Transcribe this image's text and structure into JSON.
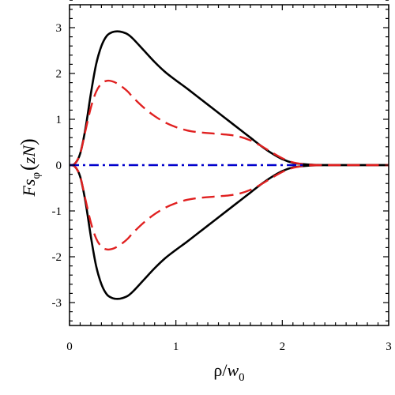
{
  "chart_data": {
    "type": "line",
    "xlabel": "ρ/w0",
    "xlabel_parts": {
      "main": "ρ/",
      "var": "w",
      "sub": "0"
    },
    "ylabel": "Fs_φ(zN)",
    "ylabel_parts": {
      "main": "Fs",
      "sub": "φ",
      "arg_open": "(",
      "arg": "zN",
      "arg_close": ")"
    },
    "xlim": [
      0,
      3
    ],
    "ylim": [
      -3.5,
      3.5
    ],
    "xticks": [
      0,
      1,
      2,
      3
    ],
    "xtick_labels": [
      "0",
      "1",
      "2",
      "3"
    ],
    "yticks": [
      -3,
      -2,
      -1,
      0,
      1,
      2,
      3
    ],
    "ytick_labels": [
      "-3",
      "-2",
      "-1",
      "0",
      "1",
      "2",
      "3"
    ],
    "grid": false,
    "legend": "none",
    "series": [
      {
        "style": "solid",
        "color": "#000000",
        "x": [
          0,
          0.05,
          0.1,
          0.15,
          0.2,
          0.25,
          0.3,
          0.35,
          0.4,
          0.45,
          0.5,
          0.55,
          0.6,
          0.7,
          0.8,
          0.9,
          1.0,
          1.1,
          1.2,
          1.3,
          1.4,
          1.5,
          1.6,
          1.7,
          1.8,
          1.9,
          2.0,
          2.1,
          2.2,
          2.3,
          2.4,
          2.5,
          2.6,
          3.0
        ],
        "y": [
          0,
          0.03,
          0.25,
          0.8,
          1.55,
          2.2,
          2.6,
          2.82,
          2.9,
          2.92,
          2.9,
          2.85,
          2.75,
          2.5,
          2.25,
          2.03,
          1.85,
          1.68,
          1.5,
          1.32,
          1.14,
          0.96,
          0.78,
          0.6,
          0.42,
          0.26,
          0.13,
          0.05,
          0.02,
          0.005,
          0,
          0,
          0,
          0
        ]
      },
      {
        "style": "solid",
        "color": "#000000",
        "x": [
          0,
          0.05,
          0.1,
          0.15,
          0.2,
          0.25,
          0.3,
          0.35,
          0.4,
          0.45,
          0.5,
          0.55,
          0.6,
          0.7,
          0.8,
          0.9,
          1.0,
          1.1,
          1.2,
          1.3,
          1.4,
          1.5,
          1.6,
          1.7,
          1.8,
          1.9,
          2.0,
          2.1,
          2.2,
          2.3,
          2.4,
          2.5,
          2.6,
          3.0
        ],
        "y": [
          0,
          -0.03,
          -0.25,
          -0.8,
          -1.55,
          -2.2,
          -2.6,
          -2.82,
          -2.9,
          -2.92,
          -2.9,
          -2.85,
          -2.75,
          -2.5,
          -2.25,
          -2.03,
          -1.85,
          -1.68,
          -1.5,
          -1.32,
          -1.14,
          -0.96,
          -0.78,
          -0.6,
          -0.42,
          -0.26,
          -0.13,
          -0.05,
          -0.02,
          -0.005,
          0,
          0,
          0,
          0
        ]
      },
      {
        "style": "dashed",
        "color": "#e02020",
        "x": [
          0,
          0.05,
          0.1,
          0.15,
          0.2,
          0.25,
          0.3,
          0.35,
          0.4,
          0.45,
          0.5,
          0.55,
          0.6,
          0.7,
          0.8,
          0.9,
          1.0,
          1.1,
          1.2,
          1.3,
          1.4,
          1.5,
          1.6,
          1.7,
          1.8,
          1.9,
          2.0,
          2.1,
          2.2,
          2.3,
          2.4,
          3.0
        ],
        "y": [
          0,
          0.03,
          0.25,
          0.75,
          1.25,
          1.6,
          1.78,
          1.84,
          1.83,
          1.78,
          1.7,
          1.6,
          1.47,
          1.25,
          1.07,
          0.93,
          0.83,
          0.76,
          0.72,
          0.7,
          0.68,
          0.66,
          0.62,
          0.54,
          0.42,
          0.28,
          0.15,
          0.06,
          0.02,
          0.005,
          0,
          0
        ]
      },
      {
        "style": "dashed",
        "color": "#e02020",
        "x": [
          0,
          0.05,
          0.1,
          0.15,
          0.2,
          0.25,
          0.3,
          0.35,
          0.4,
          0.45,
          0.5,
          0.55,
          0.6,
          0.7,
          0.8,
          0.9,
          1.0,
          1.1,
          1.2,
          1.3,
          1.4,
          1.5,
          1.6,
          1.7,
          1.8,
          1.9,
          2.0,
          2.1,
          2.2,
          2.3,
          2.4,
          3.0
        ],
        "y": [
          0,
          -0.03,
          -0.25,
          -0.75,
          -1.25,
          -1.6,
          -1.78,
          -1.84,
          -1.83,
          -1.78,
          -1.7,
          -1.6,
          -1.47,
          -1.25,
          -1.07,
          -0.93,
          -0.83,
          -0.76,
          -0.72,
          -0.7,
          -0.68,
          -0.66,
          -0.62,
          -0.54,
          -0.42,
          -0.28,
          -0.15,
          -0.06,
          -0.02,
          -0.005,
          0,
          0
        ]
      },
      {
        "style": "dashdot",
        "color": "#0000cc",
        "x": [
          0,
          2.2
        ],
        "y": [
          0,
          0
        ]
      }
    ]
  }
}
